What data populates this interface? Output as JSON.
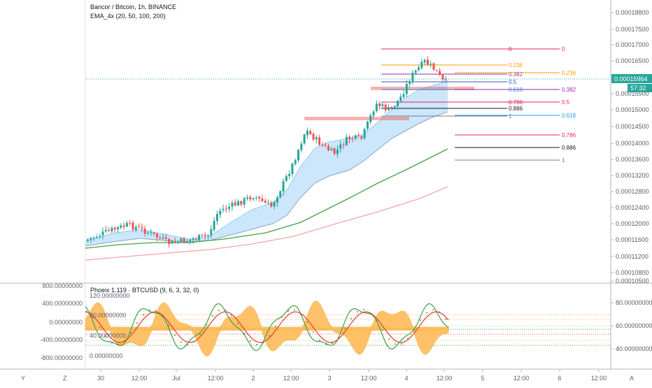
{
  "header": {
    "symbol_line": "Bancor / Bitcoin, 1h, BINANCE",
    "indicator_line": "EMA_4x (20, 50, 100, 200)"
  },
  "osc_header": "Phoeix 1.119 · BTCUSD (9, 6, 3, 32, 0)",
  "price_axis": {
    "labels": [
      "0.00018800",
      "0.00017500",
      "0.00017000",
      "0.00016500",
      "0.00016000",
      "0.00015500",
      "0.00015000",
      "0.00014500",
      "0.00014000",
      "0.00013600",
      "0.00013200",
      "0.00012800",
      "0.00012400",
      "0.00012000",
      "0.00011600",
      "0.00011200",
      "0.00010800",
      "0.00010500"
    ],
    "last_price": "0.00015964",
    "countdown": "57:32",
    "last_price_color": "#26a69a"
  },
  "osc_axis_left": [
    "800.00000000",
    "400.00000000",
    "0.00000000",
    "-400.00000000",
    "-800.00000000"
  ],
  "osc_axis_inner": [
    "120.00000000",
    "80.00000000",
    "40.00000000",
    "0.00000000"
  ],
  "osc_axis_right": [
    "80.00000000",
    "60.00000000",
    "40.00000000"
  ],
  "time_axis": [
    "30",
    "12:00",
    "Jul",
    "12:00",
    "2",
    "12:00",
    "3",
    "12:00",
    "4",
    "12:00",
    "5",
    "12:00",
    "6",
    "12:00"
  ],
  "corner_labels": {
    "left": "Y",
    "mid": "Z",
    "right": "A"
  },
  "fib_left": [
    {
      "label": "0",
      "color": "#e91e63"
    },
    {
      "label": "0.236",
      "color": "#ff9800"
    },
    {
      "label": "0.382",
      "color": "#9c27b0"
    },
    {
      "label": "0.5",
      "color": "#3f51b5"
    },
    {
      "label": "0.618",
      "color": "#2196f3"
    },
    {
      "label": "0.786",
      "color": "#e91e63"
    },
    {
      "label": "0.886",
      "color": "#131722"
    },
    {
      "label": "1",
      "color": "#787b86"
    }
  ],
  "fib_right": [
    {
      "label": "0",
      "color": "#e91e63"
    },
    {
      "label": "0.236",
      "color": "#ff9800"
    },
    {
      "label": "0.382",
      "color": "#9c27b0"
    },
    {
      "label": "0.5",
      "color": "#e91e63"
    },
    {
      "label": "0.618",
      "color": "#2196f3"
    },
    {
      "label": "0.786",
      "color": "#e91e63"
    },
    {
      "label": "0.886",
      "color": "#131722"
    },
    {
      "label": "1",
      "color": "#787b86"
    }
  ],
  "colors": {
    "up": "#26a69a",
    "down": "#ef5350",
    "ema20": "#8fa1b8",
    "cloud": "#bbdefb",
    "ema100": "#43a047",
    "ema200": "#f8a5a5",
    "osc_fill": "#ffb74d",
    "osc_green": "#43a047",
    "osc_red": "#e53935"
  },
  "chart_data": {
    "type": "candlestick",
    "title": "Bancor / Bitcoin, 1h, BINANCE",
    "indicators": [
      "EMA_4x (20, 50, 100, 200)",
      "Phoeix 1.119 · BTCUSD (9, 6, 3, 32, 0)"
    ],
    "x_labels": [
      "30",
      "12:00",
      "Jul",
      "12:00",
      "2",
      "12:00",
      "3",
      "12:00",
      "4",
      "12:00",
      "5",
      "12:00",
      "6",
      "12:00"
    ],
    "last_price": 0.00015964,
    "approx_close_path": [
      0.0001145,
      0.0001158,
      0.0001165,
      0.000119,
      0.0001175,
      0.000114,
      0.0001165,
      0.000125,
      0.0001265,
      0.000124,
      0.0001275,
      0.000142,
      0.000145,
      0.000141,
      0.000142,
      0.000152,
      0.000151,
      0.000156,
      0.000165,
      0.000168,
      0.0001596
    ],
    "fib_levels": [
      0,
      0.236,
      0.382,
      0.5,
      0.618,
      0.786,
      0.886,
      1
    ]
  }
}
